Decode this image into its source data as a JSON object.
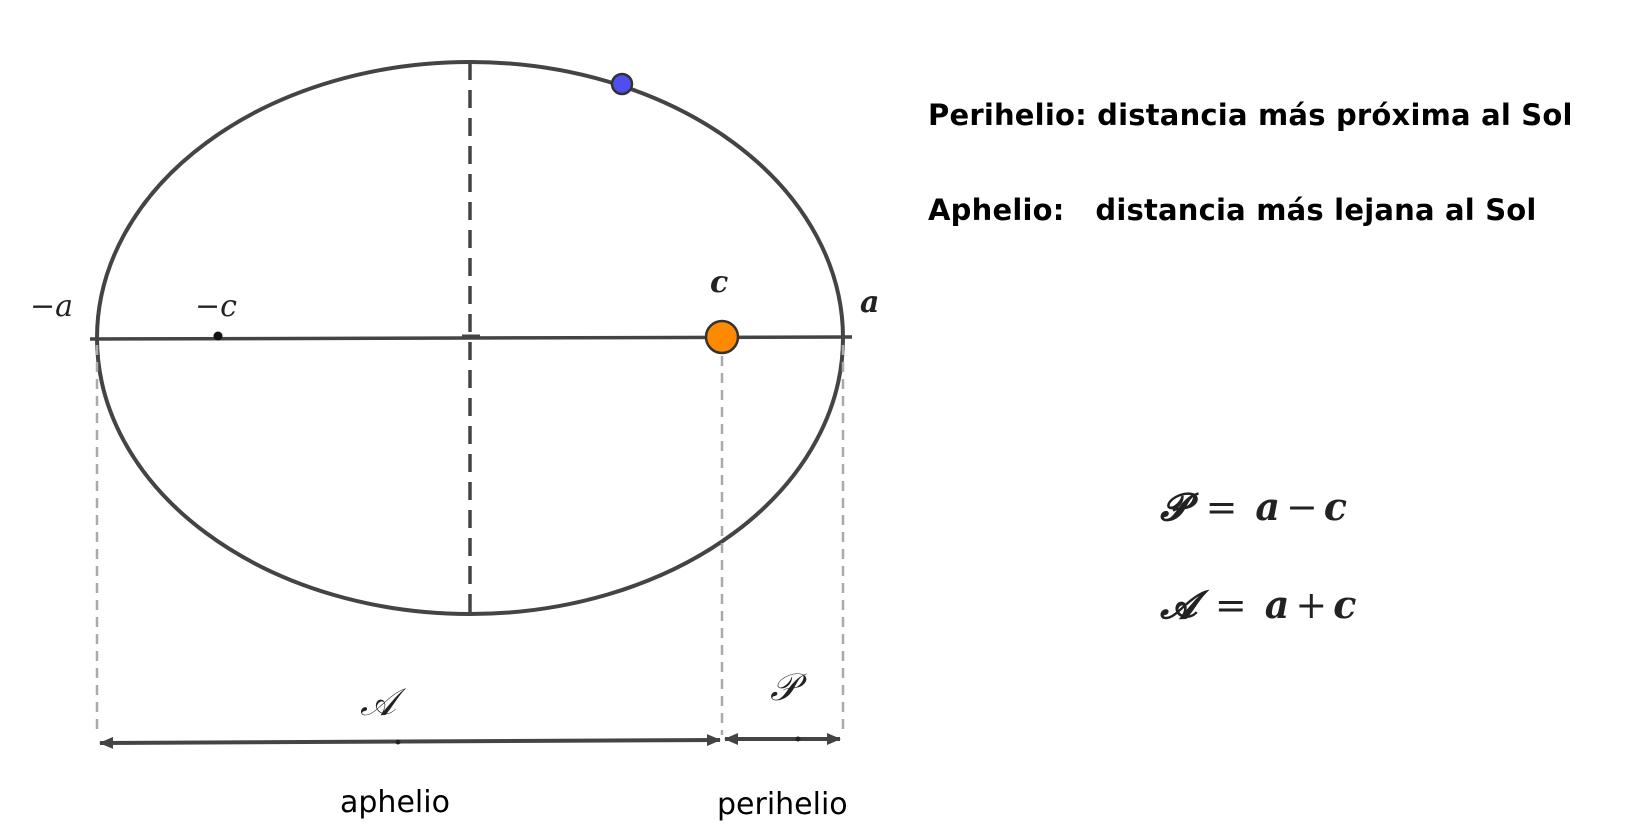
{
  "definitions": {
    "perihelio": "Perihelio: distancia más próxima al Sol",
    "aphelio": "Aphelio:   distancia más lejana al Sol"
  },
  "formulas": {
    "perihelion": {
      "lhs": "𝓟",
      "eq": "=",
      "a": "a",
      "op": "−",
      "c": "c"
    },
    "aphelion": {
      "lhs": "𝓐",
      "eq": "=",
      "a": "a",
      "op": "+",
      "c": "c"
    }
  },
  "axis_labels": {
    "neg_a": "−a",
    "neg_c": "−c",
    "c": "c",
    "a": "a"
  },
  "measure_labels": {
    "aphelion_symbol": "𝒜",
    "perihelion_symbol": "𝒫",
    "aphelio": "aphelio",
    "perihelio": "perihelio"
  },
  "colors": {
    "sun": "#ff8a00",
    "planet": "#4f4ff0",
    "ellipse": "#444444",
    "guide": "#aaaaaa"
  }
}
